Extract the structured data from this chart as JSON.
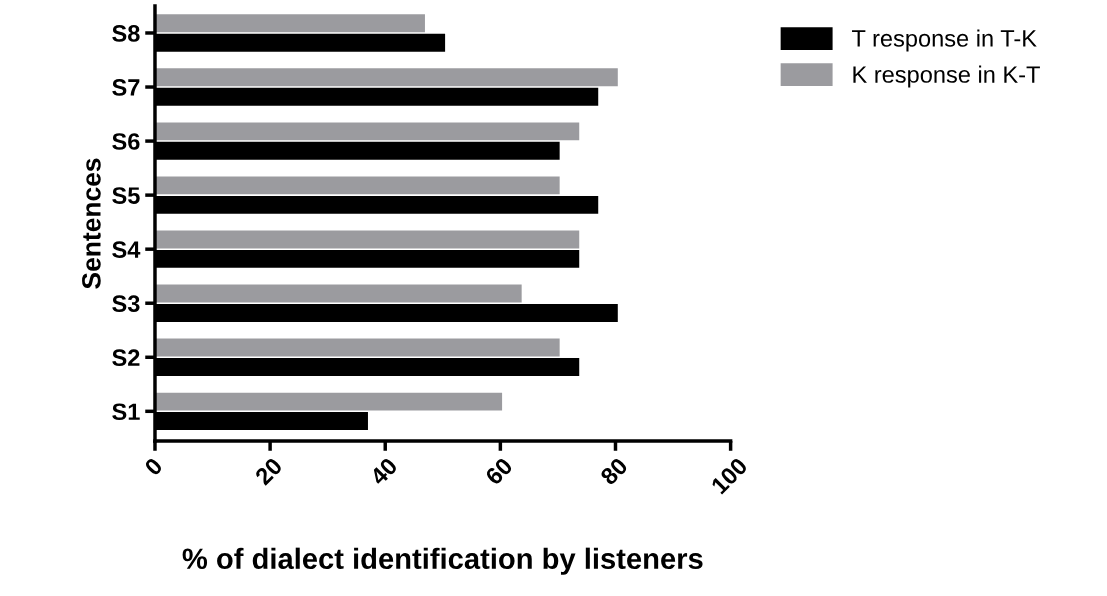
{
  "chart_data": {
    "type": "bar",
    "orientation": "horizontal",
    "xlabel": "% of dialect identification by listeners",
    "ylabel": "Sentences",
    "categories": [
      "S8",
      "S7",
      "S6",
      "S5",
      "S4",
      "S3",
      "S2",
      "S1"
    ],
    "series": [
      {
        "name": "T response in T-K",
        "color": "#000000",
        "values": [
          50.4,
          77.0,
          70.3,
          77.0,
          73.7,
          80.4,
          73.7,
          37.0
        ]
      },
      {
        "name": "K response in K-T",
        "color": "#9b9b9f",
        "values": [
          46.9,
          80.4,
          73.7,
          70.3,
          73.7,
          63.7,
          70.3,
          60.3
        ]
      }
    ],
    "xlim": [
      0,
      100
    ],
    "xticks": [
      0,
      20,
      40,
      60,
      80,
      100
    ],
    "grid": false,
    "legend": "top right"
  }
}
